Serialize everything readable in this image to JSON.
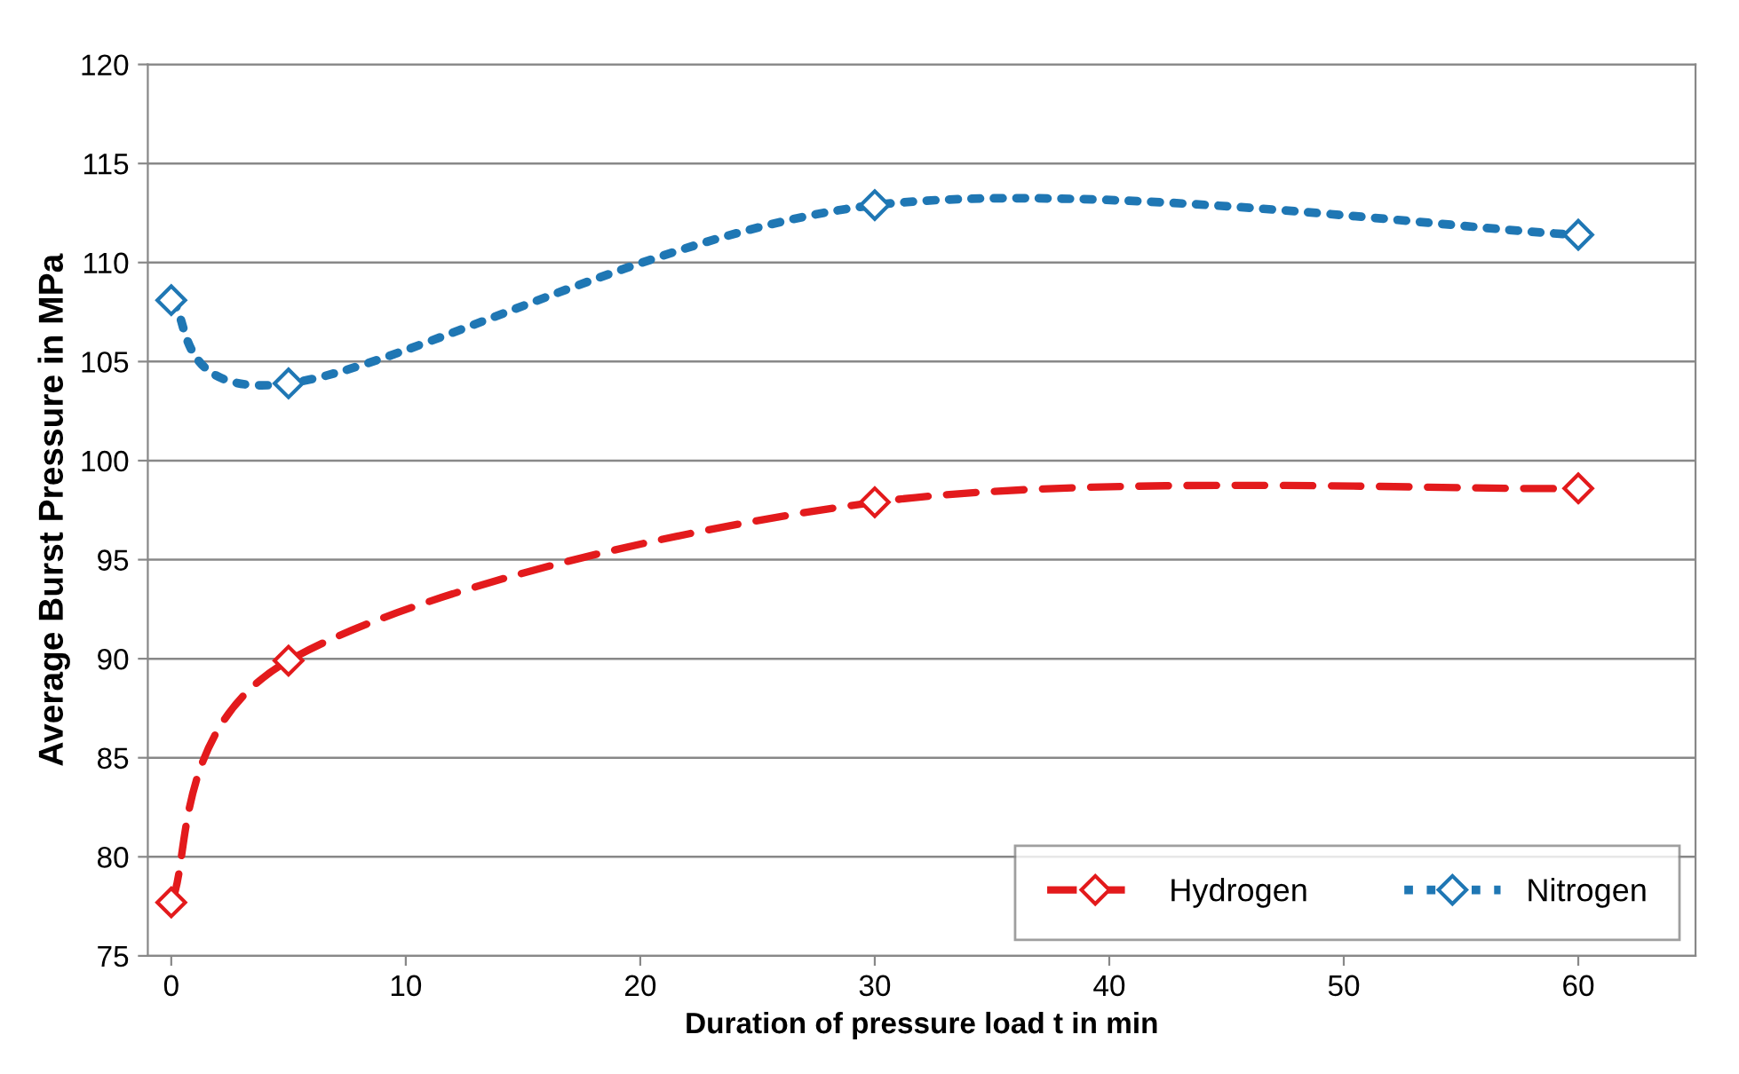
{
  "chart_data": {
    "type": "line",
    "xlabel": "Duration of pressure load t in min",
    "ylabel": "Average Burst Pressure in MPa",
    "x": [
      0,
      5,
      30,
      60
    ],
    "series": [
      {
        "name": "Hydrogen",
        "color": "#e31a1c",
        "values": [
          77.7,
          89.9,
          97.9,
          98.6
        ],
        "line_style": "dashed"
      },
      {
        "name": "Nitrogen",
        "color": "#1f77b4",
        "values": [
          108.1,
          103.9,
          112.9,
          111.4
        ],
        "line_style": "dotted"
      }
    ],
    "marker": "diamond",
    "xlim": [
      -1,
      65
    ],
    "xticks": [
      0,
      10,
      20,
      30,
      40,
      50,
      60
    ],
    "ylim": [
      75,
      120
    ],
    "yticks": [
      75,
      80,
      85,
      90,
      95,
      100,
      105,
      110,
      115,
      120
    ],
    "grid": "y",
    "legend": "bottom right"
  }
}
